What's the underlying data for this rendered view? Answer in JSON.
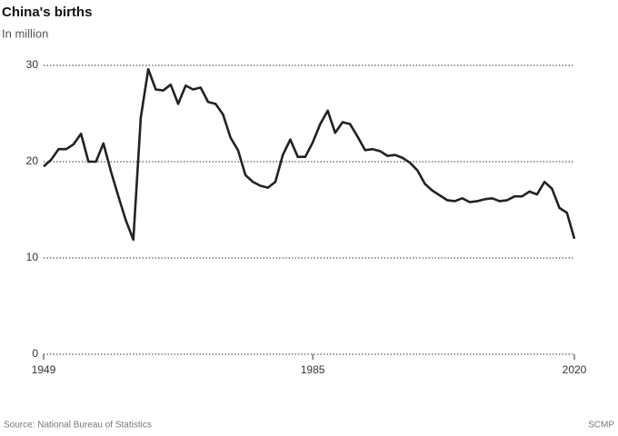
{
  "chart_data": {
    "type": "line",
    "title": "China's births",
    "subtitle": "In million",
    "source": "Source: National Bureau of Statistics",
    "credit": "SCMP",
    "x": [
      1949,
      1950,
      1951,
      1952,
      1953,
      1954,
      1955,
      1956,
      1957,
      1958,
      1959,
      1960,
      1961,
      1962,
      1963,
      1964,
      1965,
      1966,
      1967,
      1968,
      1969,
      1970,
      1971,
      1972,
      1973,
      1974,
      1975,
      1976,
      1977,
      1978,
      1979,
      1980,
      1981,
      1982,
      1983,
      1984,
      1985,
      1986,
      1987,
      1988,
      1989,
      1990,
      1991,
      1992,
      1993,
      1994,
      1995,
      1996,
      1997,
      1998,
      1999,
      2000,
      2001,
      2002,
      2003,
      2004,
      2005,
      2006,
      2007,
      2008,
      2009,
      2010,
      2011,
      2012,
      2013,
      2014,
      2015,
      2016,
      2017,
      2018,
      2019,
      2020
    ],
    "values": [
      19.5,
      20.2,
      21.3,
      21.3,
      21.8,
      22.9,
      20.0,
      20.0,
      21.9,
      19.0,
      16.4,
      13.9,
      11.9,
      24.6,
      29.6,
      27.5,
      27.4,
      28.0,
      26.0,
      27.9,
      27.5,
      27.7,
      26.2,
      26.0,
      24.9,
      22.5,
      21.2,
      18.6,
      17.9,
      17.5,
      17.3,
      17.9,
      20.7,
      22.3,
      20.5,
      20.5,
      22.0,
      23.9,
      25.3,
      23.0,
      24.1,
      23.9,
      22.6,
      21.2,
      21.3,
      21.1,
      20.6,
      20.7,
      20.4,
      19.9,
      19.1,
      17.7,
      17.0,
      16.5,
      16.0,
      15.9,
      16.2,
      15.8,
      15.9,
      16.1,
      16.2,
      15.9,
      16.0,
      16.4,
      16.4,
      16.9,
      16.6,
      17.9,
      17.2,
      15.2,
      14.7,
      12.0
    ],
    "color": "#222222",
    "xlim": [
      1949,
      2020
    ],
    "xticks": [
      1949,
      1985,
      2020
    ],
    "ylim": [
      0,
      30
    ],
    "yticks": [
      0,
      10,
      20,
      30
    ],
    "grid": true
  }
}
